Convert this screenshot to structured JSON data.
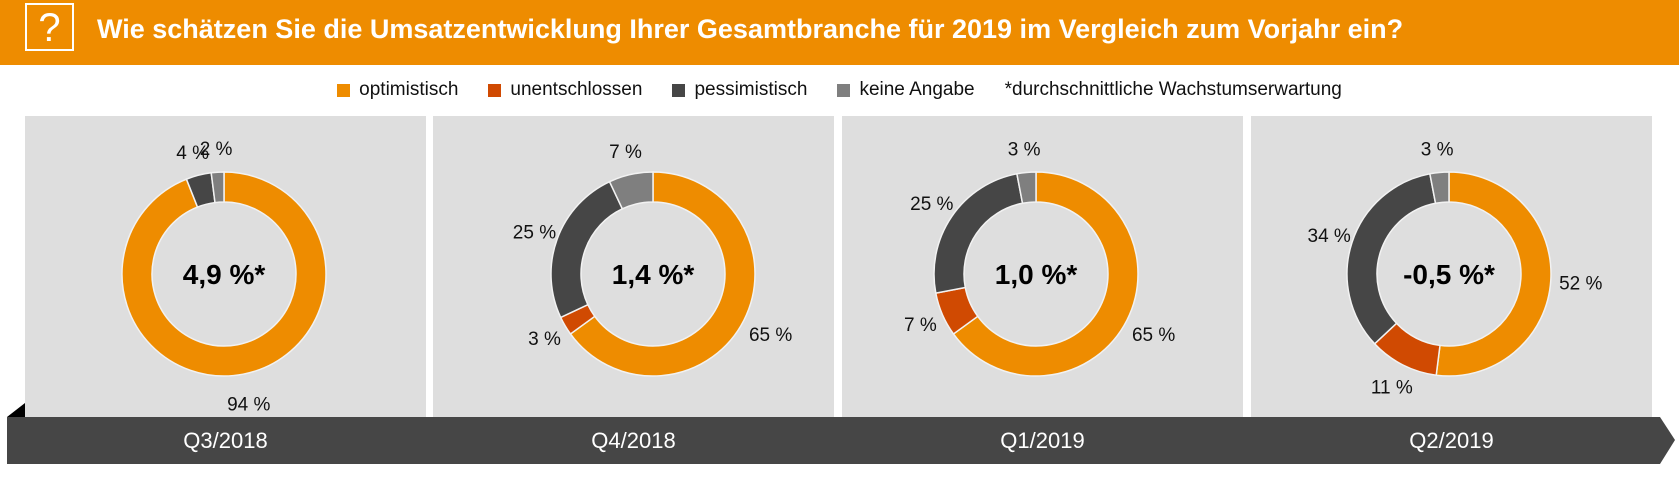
{
  "header": {
    "icon": "question-mark-icon",
    "title": "Wie schätzen Sie die Umsatzentwicklung Ihrer Gesamtbranche für 2019 im Vergleich zum Vorjahr ein?"
  },
  "legend": [
    {
      "label": "optimistisch",
      "color": "#EE8C00"
    },
    {
      "label": "unentschlossen",
      "color": "#D04A02"
    },
    {
      "label": "pessimistisch",
      "color": "#464646"
    },
    {
      "label": "keine Angabe",
      "color": "#7F7F7F"
    },
    {
      "label": "*durchschnittliche Wachstumserwartung",
      "color": null
    }
  ],
  "chart_data": [
    {
      "type": "pie",
      "variant": "donut",
      "period": "Q3/2018",
      "center_label": "4,9 %*",
      "categories": [
        "optimistisch",
        "unentschlossen",
        "pessimistisch",
        "keine Angabe"
      ],
      "values": [
        94,
        0,
        4,
        2
      ],
      "labels": [
        "94 %",
        "",
        "4 %",
        "2 %"
      ]
    },
    {
      "type": "pie",
      "variant": "donut",
      "period": "Q4/2018",
      "center_label": "1,4 %*",
      "categories": [
        "optimistisch",
        "unentschlossen",
        "pessimistisch",
        "keine Angabe"
      ],
      "values": [
        65,
        3,
        25,
        7
      ],
      "labels": [
        "65 %",
        "3 %",
        "25 %",
        "7 %"
      ]
    },
    {
      "type": "pie",
      "variant": "donut",
      "period": "Q1/2019",
      "center_label": "1,0 %*",
      "categories": [
        "optimistisch",
        "unentschlossen",
        "pessimistisch",
        "keine Angabe"
      ],
      "values": [
        65,
        7,
        25,
        3
      ],
      "labels": [
        "65 %",
        "7 %",
        "25 %",
        "3 %"
      ]
    },
    {
      "type": "pie",
      "variant": "donut",
      "period": "Q2/2019",
      "center_label": "-0,5 %*",
      "categories": [
        "optimistisch",
        "unentschlossen",
        "pessimistisch",
        "keine Angabe"
      ],
      "values": [
        52,
        11,
        34,
        3
      ],
      "labels": [
        "52 %",
        "11 %",
        "34 %",
        "3 %"
      ]
    }
  ],
  "colors": {
    "header": "#EE8C00",
    "panel": "#DEDEDE",
    "timeline": "#464646"
  }
}
